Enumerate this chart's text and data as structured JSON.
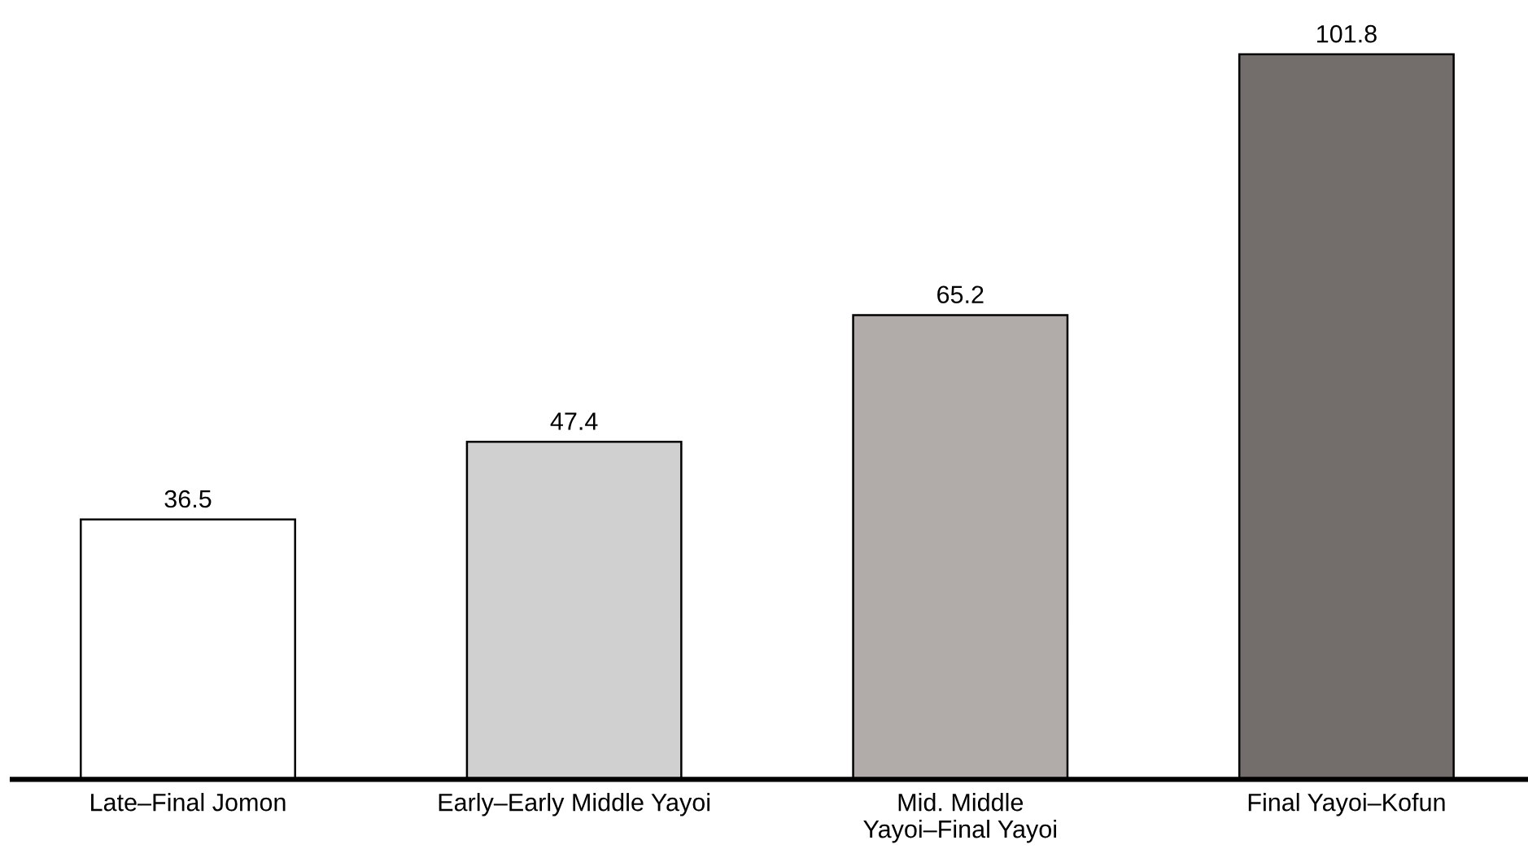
{
  "chart_data": {
    "type": "bar",
    "categories": [
      "Late–Final Jomon",
      "Early–Early Middle Yayoi",
      "Mid. Middle\nYayoi–Final Yayoi",
      "Final Yayoi–Kofun"
    ],
    "values": [
      36.5,
      47.4,
      65.2,
      101.8
    ],
    "colors": [
      "#ffffff",
      "#d0d0d0",
      "#b1abaa",
      "#736d6c"
    ],
    "data_labels": true,
    "grid": false,
    "legend": false
  }
}
